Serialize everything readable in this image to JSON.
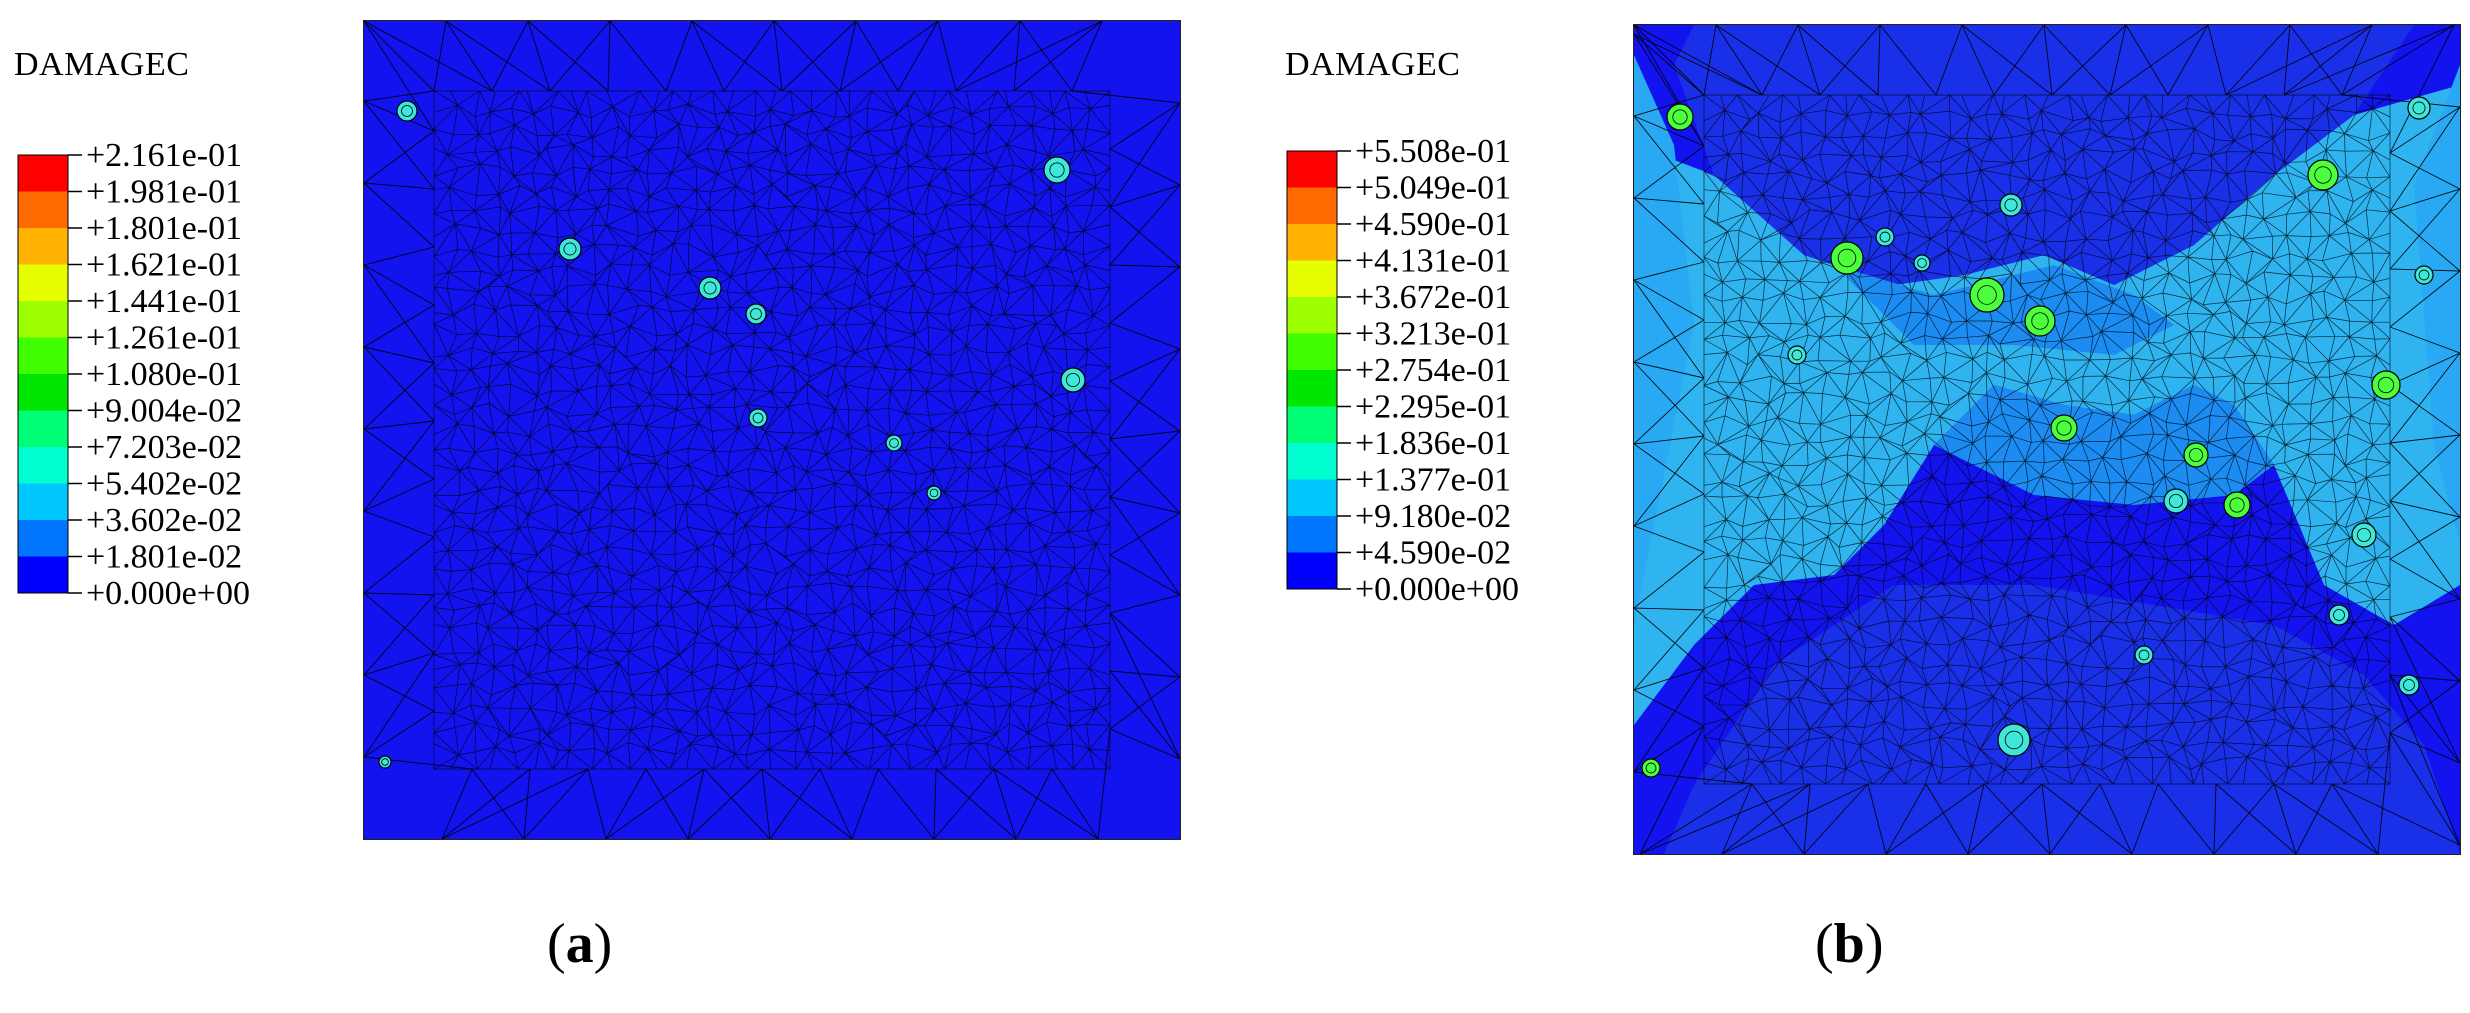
{
  "figure": {
    "panels": [
      {
        "id": "a",
        "caption_open": "(",
        "caption_letter": "a",
        "caption_close": ")",
        "legend": {
          "title": "DAMAGEC",
          "labels": [
            "+2.161e-01",
            "+1.981e-01",
            "+1.801e-01",
            "+1.621e-01",
            "+1.441e-01",
            "+1.261e-01",
            "+1.080e-01",
            "+9.004e-02",
            "+7.203e-02",
            "+5.402e-02",
            "+3.602e-02",
            "+1.801e-02",
            "+0.000e+00"
          ]
        }
      },
      {
        "id": "b",
        "caption_open": "(",
        "caption_letter": "b",
        "caption_close": ")",
        "legend": {
          "title": "DAMAGEC",
          "labels": [
            "+5.508e-01",
            "+5.049e-01",
            "+4.590e-01",
            "+4.131e-01",
            "+3.672e-01",
            "+3.213e-01",
            "+2.754e-01",
            "+2.295e-01",
            "+1.836e-01",
            "+1.377e-01",
            "+9.180e-02",
            "+4.590e-02",
            "+0.000e+00"
          ]
        }
      }
    ],
    "colormap": [
      "#ff0000",
      "#ff6a00",
      "#ffb300",
      "#e6ff00",
      "#9eff00",
      "#3fff00",
      "#00e600",
      "#00ff76",
      "#00ffd0",
      "#00c8ff",
      "#0076ff",
      "#0000ff"
    ],
    "mesh_colors": {
      "base": "#1313ef",
      "dark_region": "#1a2fe8",
      "light_region": "#2fb4f0",
      "mid_region": "#1c8cf2",
      "inclusion_light": "#3fe7d8",
      "inclusion_green": "#4cff3c",
      "edge": "#000000"
    }
  }
}
